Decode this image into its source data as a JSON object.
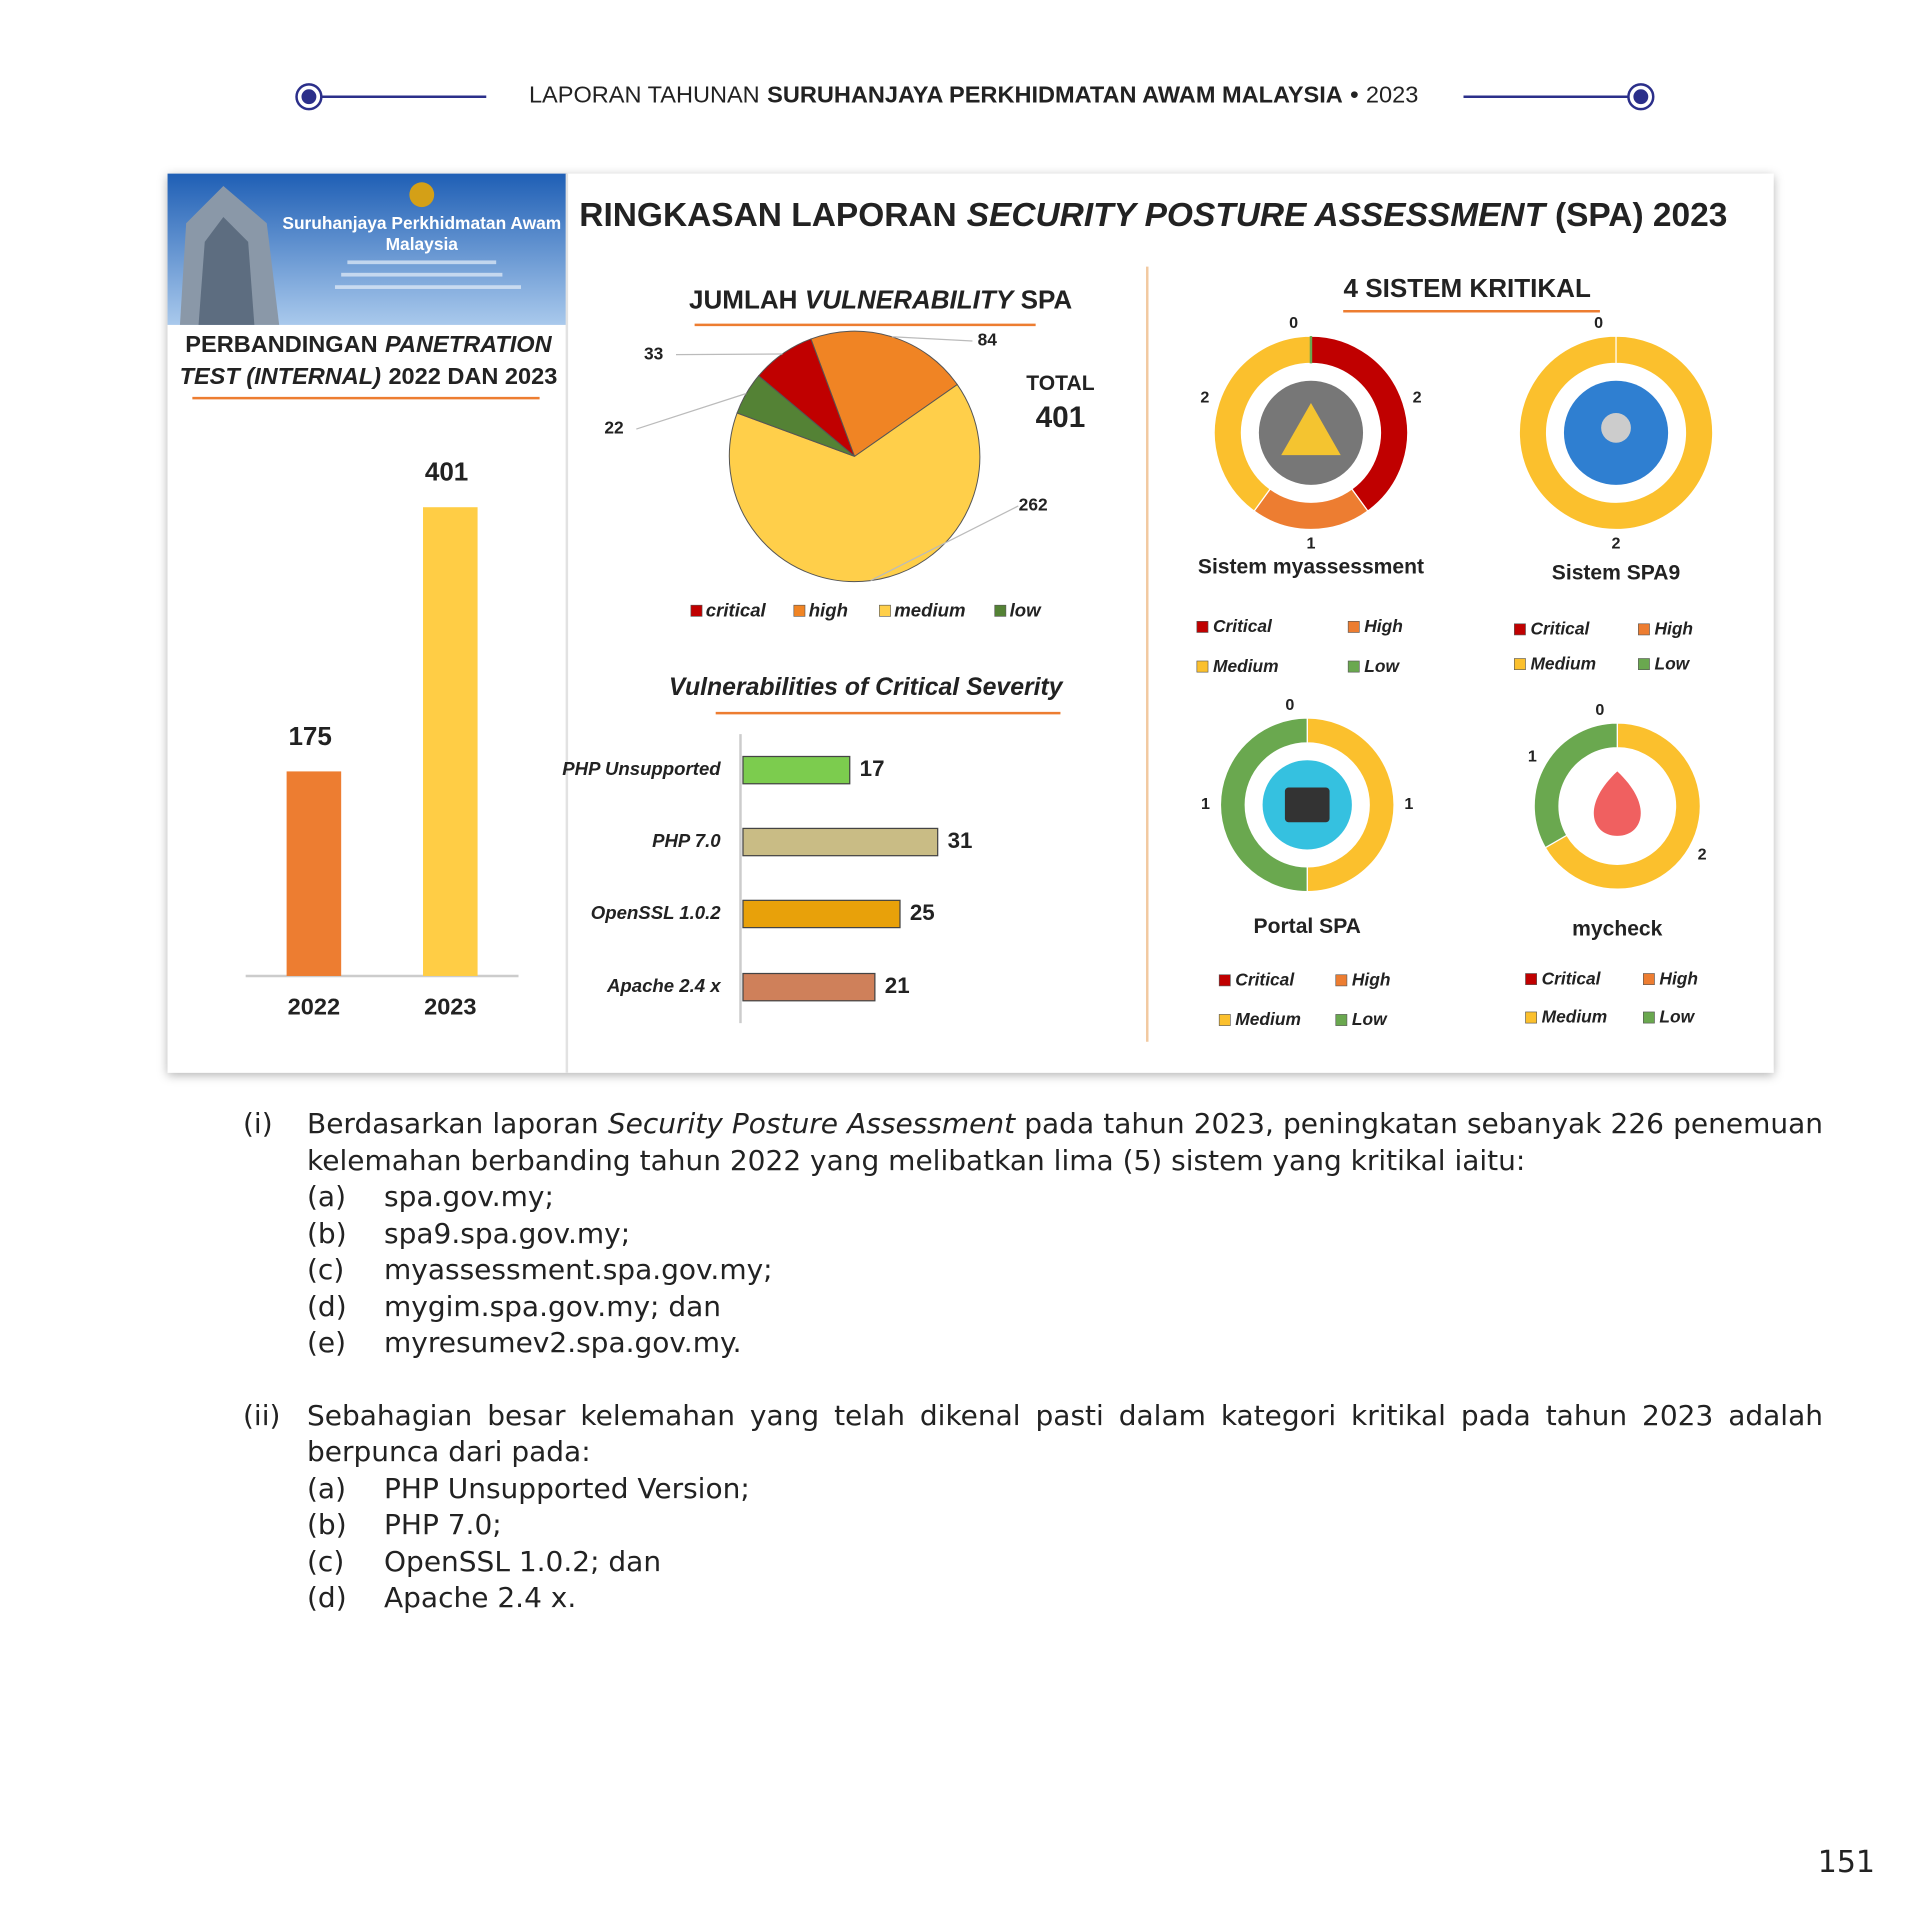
{
  "header": {
    "prefix": "LAPORAN TAHUNAN",
    "organisation": "SURUHANJAYA PERKHIDMATAN AWAM MALAYSIA",
    "separator": "•",
    "year": "2023"
  },
  "infographic": {
    "title": {
      "prefix": "RINGKASAN LAPORAN",
      "emphasis": "SECURITY POSTURE ASSESSMENT",
      "suffix": "(SPA) 2023"
    },
    "logo": {
      "line1": "Suruhanjaya Perkhidmatan Awam",
      "line2": "Malaysia"
    },
    "comparison": {
      "type": "bar",
      "title": {
        "line1_prefix": "PERBANDINGAN",
        "line1_emphasis": "PANETRATION",
        "line2_emphasis": "TEST (INTERNAL)",
        "line2_suffix": "2022 DAN 2023"
      },
      "categories": [
        "2022",
        "2023"
      ],
      "values": [
        175,
        401
      ],
      "colors": [
        "#ed7d31",
        "#ffcd45"
      ]
    },
    "total_vulnerability": {
      "type": "pie",
      "title": {
        "prefix": "JUMLAH",
        "emphasis": "VULNERABILITY",
        "suffix": "SPA"
      },
      "categories": [
        "critical",
        "high",
        "medium",
        "low"
      ],
      "values": [
        33,
        84,
        262,
        22
      ],
      "colors": [
        "#c00000",
        "#f08424",
        "#ffcf4a",
        "#548235"
      ],
      "total_label": "TOTAL",
      "total": 401
    },
    "critical_severity": {
      "type": "bar",
      "orientation": "horizontal",
      "title": "Vulnerabilities of Critical Severity",
      "categories": [
        "PHP Unsupported",
        "PHP 7.0",
        "OpenSSL 1.0.2",
        "Apache 2.4 x"
      ],
      "values": [
        17,
        31,
        25,
        21
      ],
      "colors": [
        "#7ccc4e",
        "#c9bc85",
        "#e8a10a",
        "#cf805a"
      ]
    },
    "systems": {
      "type": "donut",
      "title": "4 SISTEM KRITIKAL",
      "categories": [
        "Critical",
        "High",
        "Medium",
        "Low"
      ],
      "colors": [
        "#c00000",
        "#ed7d31",
        "#fbc02d",
        "#6aa84f"
      ],
      "items": [
        {
          "name": "Sistem myassessment",
          "values": [
            2,
            1,
            2,
            0
          ]
        },
        {
          "name": "Sistem SPA9",
          "values": [
            0,
            null,
            2,
            null
          ]
        },
        {
          "name": "Portal SPA",
          "values": [
            0,
            null,
            1,
            1
          ]
        },
        {
          "name": "mycheck",
          "values": [
            0,
            null,
            2,
            1
          ]
        }
      ]
    }
  },
  "body": {
    "paragraphs": [
      {
        "marker": "(i)",
        "text_before": "Berdasarkan laporan",
        "text_emphasis": "Security Posture Assessment",
        "text_after": "pada tahun 2023, peningkatan sebanyak 226 penemuan kelemahan berbanding tahun 2022 yang melibatkan lima (5) sistem yang kritikal iaitu:",
        "items": [
          {
            "label": "(a)",
            "text": "spa.gov.my;"
          },
          {
            "label": "(b)",
            "text": "spa9.spa.gov.my;"
          },
          {
            "label": "(c)",
            "text": "myassessment.spa.gov.my;"
          },
          {
            "label": "(d)",
            "text": "mygim.spa.gov.my; dan"
          },
          {
            "label": "(e)",
            "text": "myresumev2.spa.gov.my."
          }
        ]
      },
      {
        "marker": "(ii)",
        "text_before": "Sebahagian besar kelemahan yang telah dikenal pasti dalam kategori kritikal pada tahun 2023 adalah berpunca dari pada:",
        "items": [
          {
            "label": "(a)",
            "text": "PHP Unsupported Version;"
          },
          {
            "label": "(b)",
            "text": "PHP 7.0;"
          },
          {
            "label": "(c)",
            "text": "OpenSSL 1.0.2; dan"
          },
          {
            "label": "(d)",
            "text": "Apache 2.4 x."
          }
        ]
      }
    ]
  },
  "page_number": "151"
}
